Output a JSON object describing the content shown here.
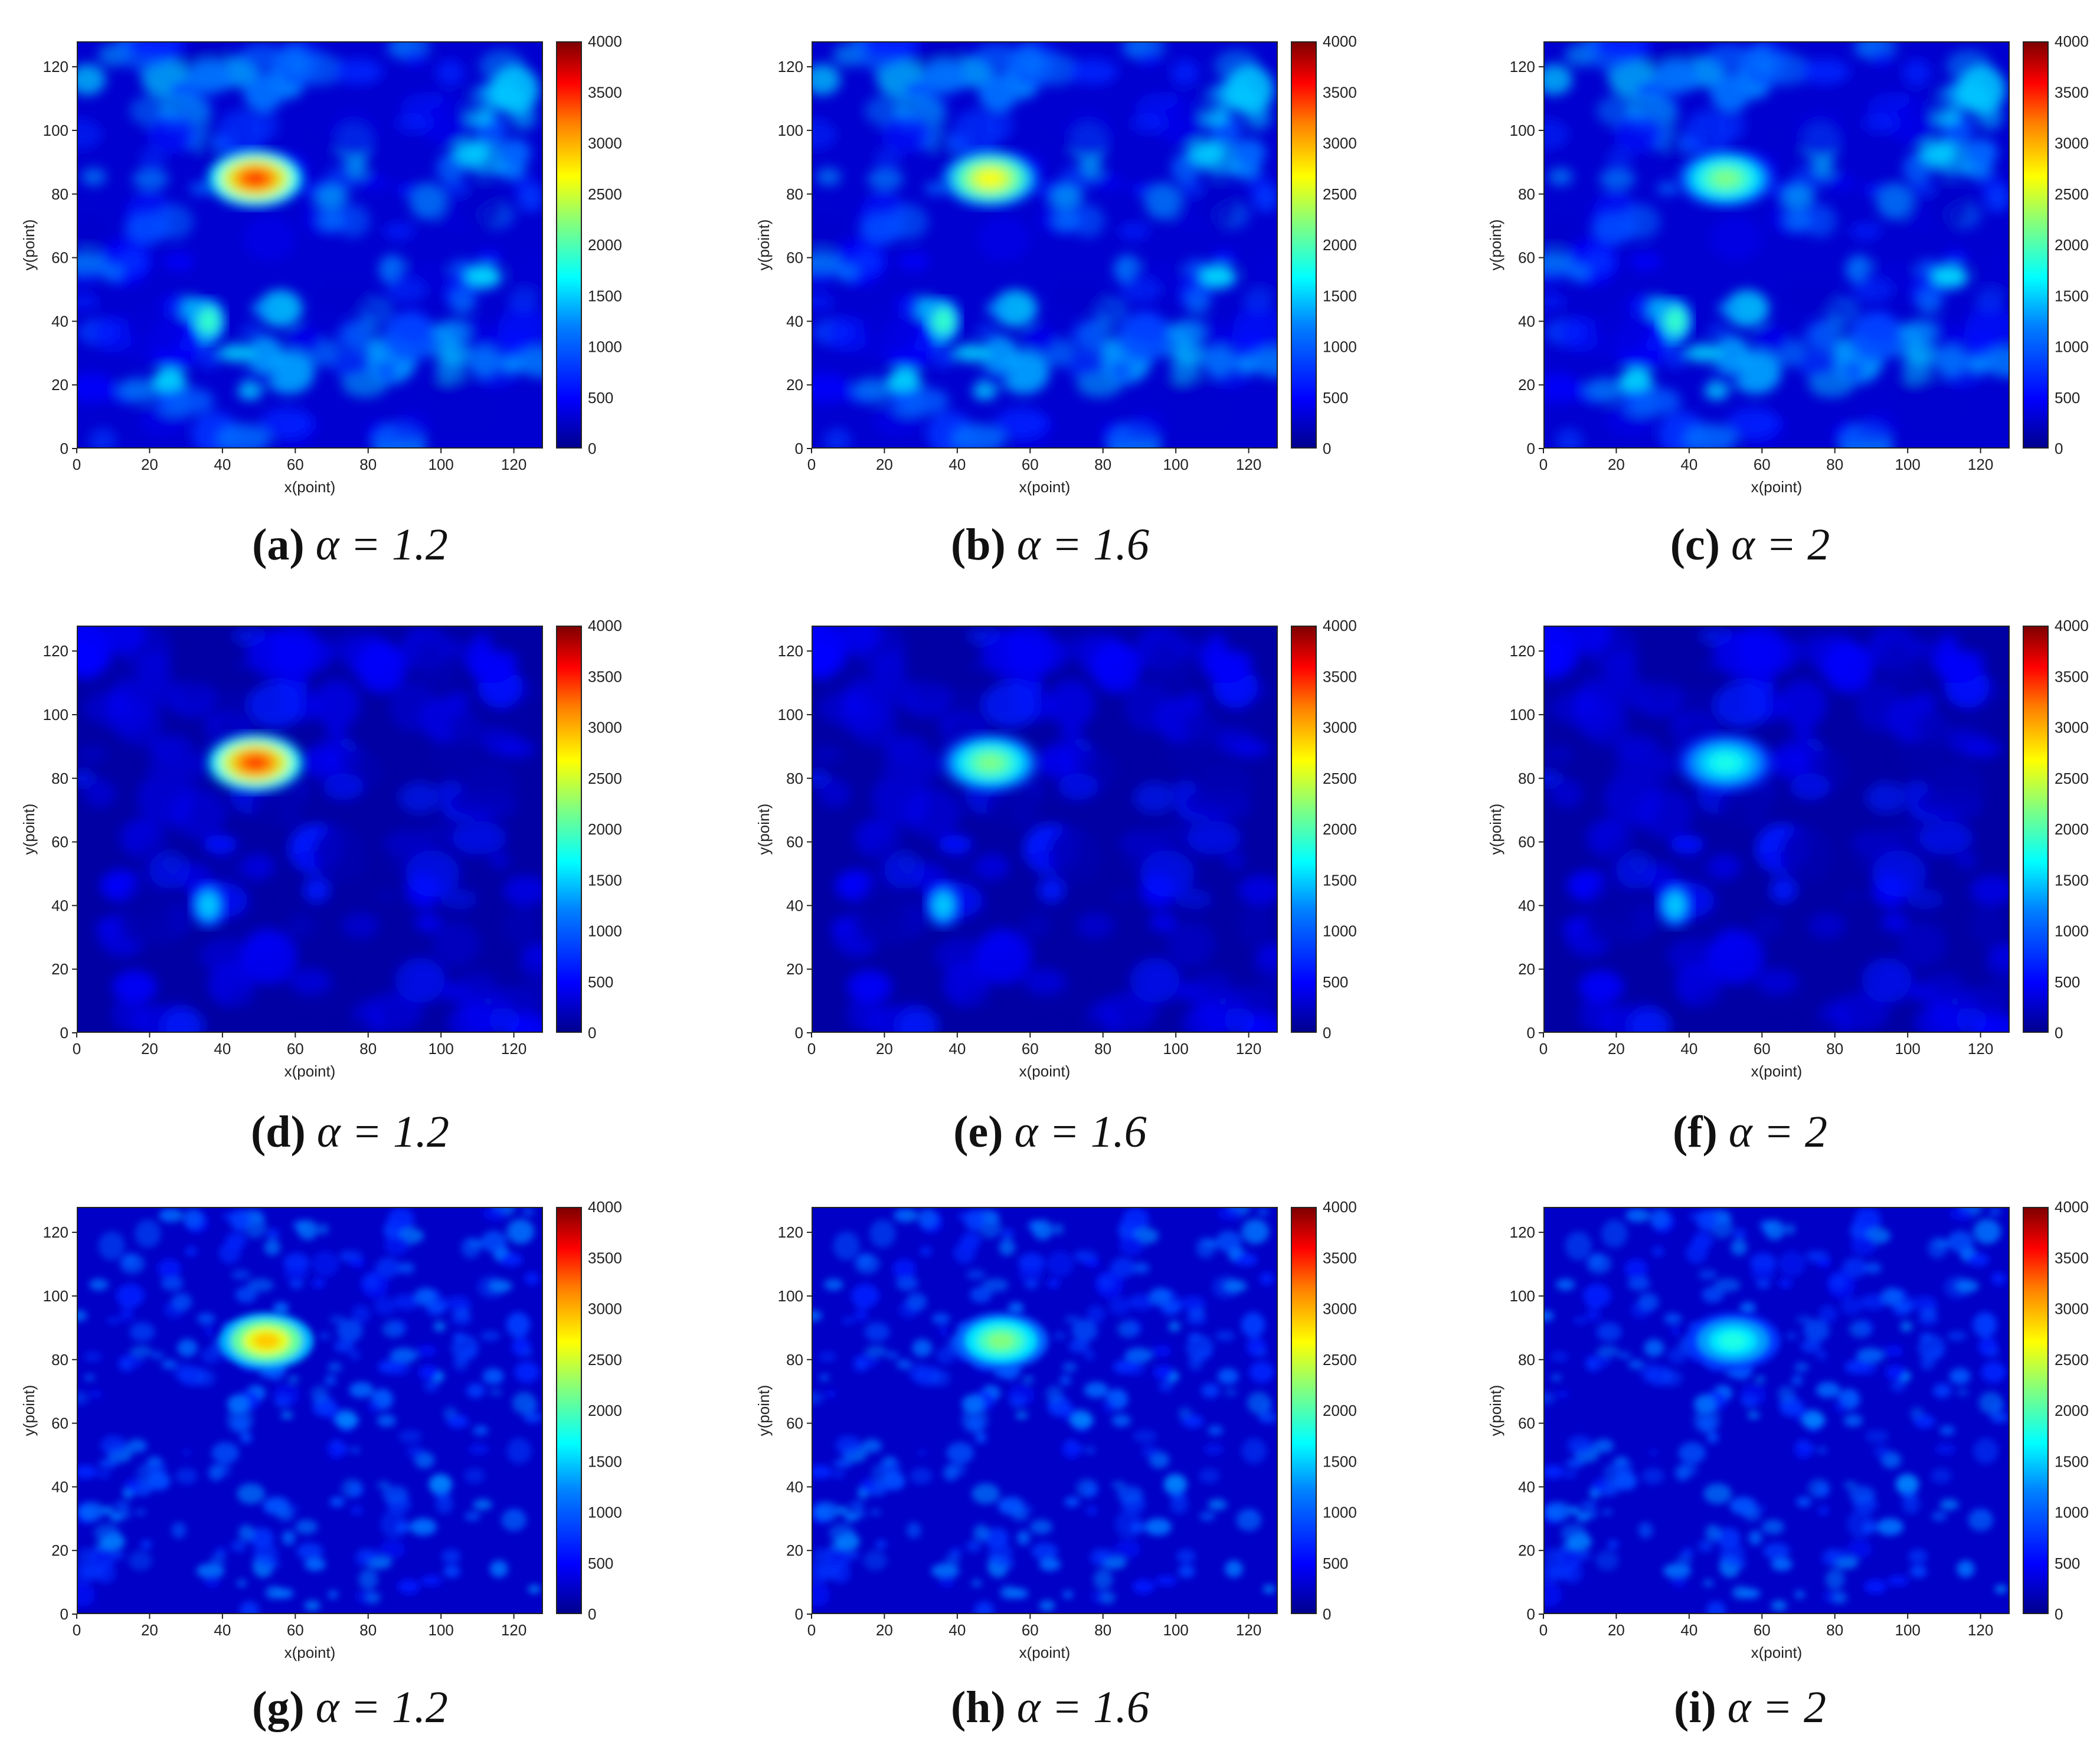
{
  "figure": {
    "xlabel": "x(point)",
    "ylabel": "y(point)",
    "x_ticks": [
      "0",
      "20",
      "40",
      "60",
      "80",
      "100",
      "120"
    ],
    "y_ticks": [
      "0",
      "20",
      "40",
      "60",
      "80",
      "100",
      "120"
    ],
    "colorbar_ticks": [
      "0",
      "500",
      "1000",
      "1500",
      "2000",
      "2500",
      "3000",
      "3500",
      "4000"
    ]
  },
  "chart_data": [
    {
      "type": "heatmap",
      "caption_letter": "(a)",
      "caption_param": "α = 1.2",
      "xlim": [
        0,
        128
      ],
      "ylim": [
        0,
        128
      ],
      "clim": [
        0,
        4000
      ],
      "colormap": "jet",
      "row": 1,
      "hotspot": {
        "x": 49,
        "y": 85,
        "peak_value": 3300
      },
      "secondary_spot": {
        "x": 36,
        "y": 40,
        "peak_value": 2000
      },
      "background_level": 900
    },
    {
      "type": "heatmap",
      "caption_letter": "(b)",
      "caption_param": "α = 1.6",
      "xlim": [
        0,
        128
      ],
      "ylim": [
        0,
        128
      ],
      "clim": [
        0,
        4000
      ],
      "colormap": "jet",
      "row": 1,
      "hotspot": {
        "x": 49,
        "y": 85,
        "peak_value": 2500
      },
      "secondary_spot": {
        "x": 36,
        "y": 40,
        "peak_value": 2000
      },
      "background_level": 900
    },
    {
      "type": "heatmap",
      "caption_letter": "(c)",
      "caption_param": "α = 2",
      "xlim": [
        0,
        128
      ],
      "ylim": [
        0,
        128
      ],
      "clim": [
        0,
        4000
      ],
      "colormap": "jet",
      "row": 1,
      "hotspot": {
        "x": 50,
        "y": 85,
        "peak_value": 2000
      },
      "secondary_spot": {
        "x": 36,
        "y": 40,
        "peak_value": 2000
      },
      "background_level": 900
    },
    {
      "type": "heatmap",
      "caption_letter": "(d)",
      "caption_param": "α = 1.2",
      "xlim": [
        0,
        128
      ],
      "ylim": [
        0,
        128
      ],
      "clim": [
        0,
        4000
      ],
      "colormap": "jet",
      "row": 2,
      "hotspot": {
        "x": 49,
        "y": 85,
        "peak_value": 3300
      },
      "secondary_spot": {
        "x": 36,
        "y": 40,
        "peak_value": 1500
      },
      "background_level": 400
    },
    {
      "type": "heatmap",
      "caption_letter": "(e)",
      "caption_param": "α = 1.6",
      "xlim": [
        0,
        128
      ],
      "ylim": [
        0,
        128
      ],
      "clim": [
        0,
        4000
      ],
      "colormap": "jet",
      "row": 2,
      "hotspot": {
        "x": 49,
        "y": 85,
        "peak_value": 2000
      },
      "secondary_spot": {
        "x": 36,
        "y": 40,
        "peak_value": 1500
      },
      "background_level": 400
    },
    {
      "type": "heatmap",
      "caption_letter": "(f)",
      "caption_param": "α = 2",
      "xlim": [
        0,
        128
      ],
      "ylim": [
        0,
        128
      ],
      "clim": [
        0,
        4000
      ],
      "colormap": "jet",
      "row": 2,
      "hotspot": {
        "x": 50,
        "y": 85,
        "peak_value": 1600
      },
      "secondary_spot": {
        "x": 36,
        "y": 40,
        "peak_value": 1500
      },
      "background_level": 400
    },
    {
      "type": "heatmap",
      "caption_letter": "(g)",
      "caption_param": "α = 1.2",
      "xlim": [
        0,
        128
      ],
      "ylim": [
        0,
        128
      ],
      "clim": [
        0,
        4000
      ],
      "colormap": "jet",
      "row": 3,
      "hotspot": {
        "x": 52,
        "y": 86,
        "peak_value": 2700
      },
      "secondary_spot": null,
      "background_level": 800
    },
    {
      "type": "heatmap",
      "caption_letter": "(h)",
      "caption_param": "α = 1.6",
      "xlim": [
        0,
        128
      ],
      "ylim": [
        0,
        128
      ],
      "clim": [
        0,
        4000
      ],
      "colormap": "jet",
      "row": 3,
      "hotspot": {
        "x": 52,
        "y": 86,
        "peak_value": 2000
      },
      "secondary_spot": null,
      "background_level": 800
    },
    {
      "type": "heatmap",
      "caption_letter": "(i)",
      "caption_param": "α = 2",
      "xlim": [
        0,
        128
      ],
      "ylim": [
        0,
        128
      ],
      "clim": [
        0,
        4000
      ],
      "colormap": "jet",
      "row": 3,
      "hotspot": {
        "x": 52,
        "y": 86,
        "peak_value": 1600
      },
      "secondary_spot": null,
      "background_level": 800
    }
  ]
}
